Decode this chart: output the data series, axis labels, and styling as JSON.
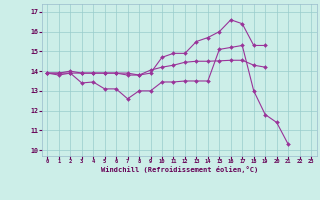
{
  "xlabel": "Windchill (Refroidissement éolien,°C)",
  "bg_color": "#cceee8",
  "line_color": "#993399",
  "grid_color": "#99cccc",
  "xlim": [
    -0.5,
    23.5
  ],
  "ylim": [
    9.7,
    17.4
  ],
  "yticks": [
    10,
    11,
    12,
    13,
    14,
    15,
    16,
    17
  ],
  "xticks": [
    0,
    1,
    2,
    3,
    4,
    5,
    6,
    7,
    8,
    9,
    10,
    11,
    12,
    13,
    14,
    15,
    16,
    17,
    18,
    19,
    20,
    21,
    22,
    23
  ],
  "line1_y": [
    13.9,
    13.8,
    13.9,
    13.4,
    13.45,
    13.1,
    13.1,
    12.6,
    13.0,
    13.0,
    13.45,
    13.45,
    13.5,
    13.5,
    13.5,
    15.1,
    15.2,
    15.3,
    13.0,
    11.8,
    11.4,
    10.3,
    null,
    null
  ],
  "line2_y": [
    13.9,
    13.9,
    14.0,
    13.9,
    13.9,
    13.9,
    13.9,
    13.9,
    13.8,
    13.9,
    14.7,
    14.9,
    14.9,
    15.5,
    15.7,
    16.0,
    16.6,
    16.4,
    15.3,
    15.3,
    null,
    null,
    null,
    null
  ],
  "line3_y": [
    13.9,
    13.9,
    13.9,
    13.9,
    13.9,
    13.9,
    13.9,
    13.8,
    13.8,
    14.05,
    14.2,
    14.3,
    14.45,
    14.5,
    14.5,
    14.52,
    14.55,
    14.55,
    14.3,
    14.2,
    null,
    null,
    null,
    null
  ]
}
